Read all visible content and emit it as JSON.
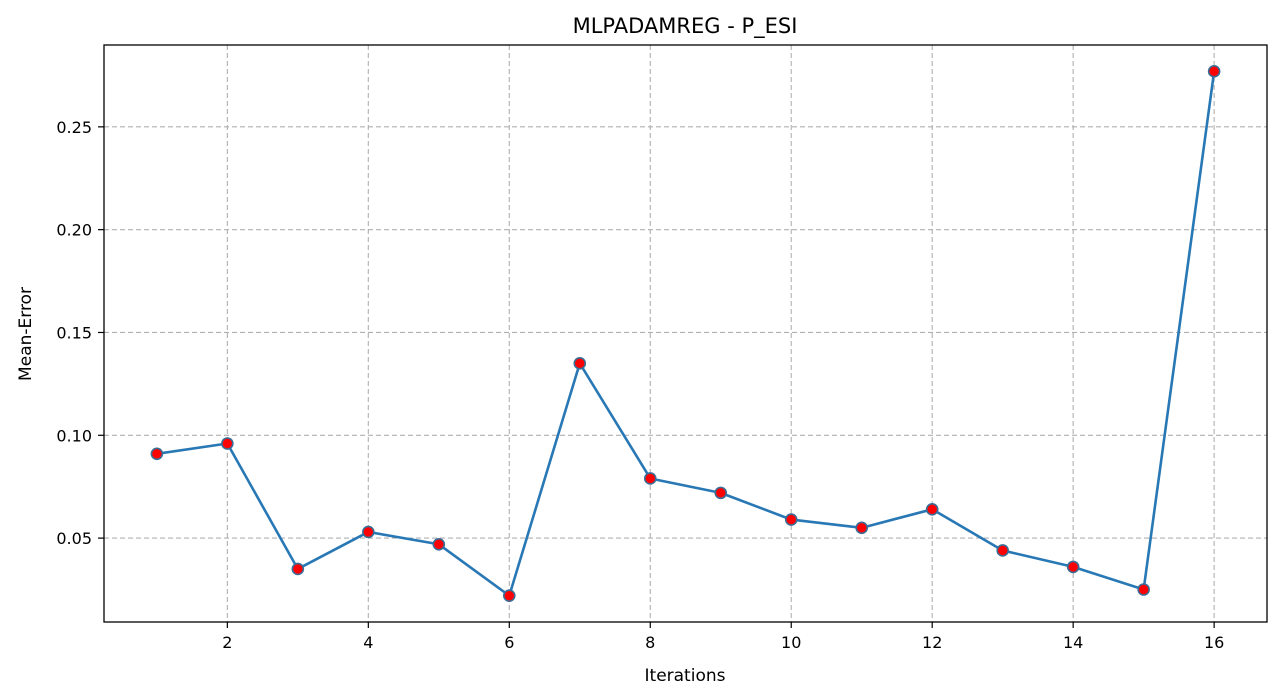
{
  "chart_data": {
    "type": "line",
    "title": "MLPADAMREG - P_ESI",
    "xlabel": "Iterations",
    "ylabel": "Mean-Error",
    "x": [
      1,
      2,
      3,
      4,
      5,
      6,
      7,
      8,
      9,
      10,
      11,
      12,
      13,
      14,
      15,
      16
    ],
    "series": [
      {
        "values": [
          0.091,
          0.096,
          0.035,
          0.053,
          0.047,
          0.022,
          0.135,
          0.079,
          0.072,
          0.059,
          0.055,
          0.064,
          0.044,
          0.036,
          0.025,
          0.277
        ]
      }
    ],
    "xlim": [
      0.25,
      16.75
    ],
    "ylim": [
      0.0092,
      0.2898
    ],
    "xticks": [
      2,
      4,
      6,
      8,
      10,
      12,
      14,
      16
    ],
    "xtick_labels": [
      "2",
      "4",
      "6",
      "8",
      "10",
      "12",
      "14",
      "16"
    ],
    "yticks": [
      0.05,
      0.1,
      0.15,
      0.2,
      0.25
    ],
    "ytick_labels": [
      "0.05",
      "0.10",
      "0.15",
      "0.20",
      "0.25"
    ],
    "grid": true,
    "colors": {
      "line": "#2878b5",
      "marker_fill": "#ff0000",
      "marker_edge": "#3a6e96",
      "grid": "#b0b0b0"
    }
  }
}
